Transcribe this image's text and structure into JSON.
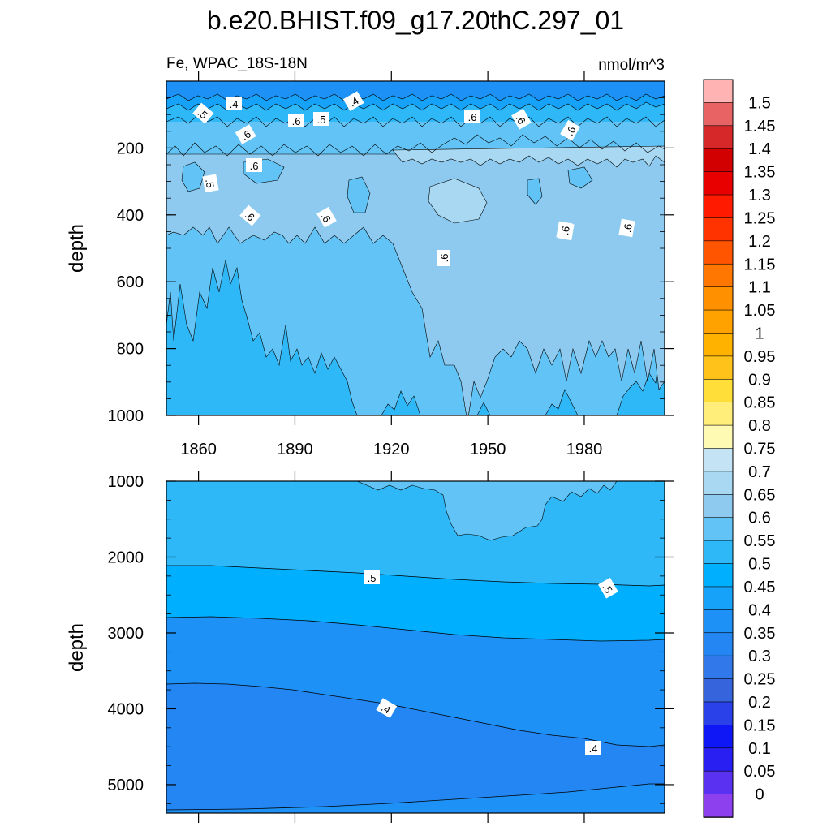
{
  "chart_data": {
    "type": "heatmap",
    "title": "b.e20.BHIST.f09_g17.20thC.297_01",
    "left_subtitle": "Fe, WPAC_18S-18N",
    "right_subtitle": "nmol/m^3",
    "colorbar": {
      "levels": [
        "1.5",
        "1.45",
        "1.4",
        "1.35",
        "1.3",
        "1.25",
        "1.2",
        "1.15",
        "1.1",
        "1.05",
        "1",
        "0.95",
        "0.9",
        "0.85",
        "0.8",
        "0.75",
        "0.7",
        "0.65",
        "0.6",
        "0.55",
        "0.5",
        "0.45",
        "0.4",
        "0.35",
        "0.3",
        "0.25",
        "0.2",
        "0.15",
        "0.1",
        "0.05",
        "0"
      ],
      "colors": [
        "#ffb3b3",
        "#e86464",
        "#d62828",
        "#d20000",
        "#e80000",
        "#ff1a00",
        "#ff3300",
        "#ff5500",
        "#ff7700",
        "#ff9100",
        "#ffa200",
        "#ffb300",
        "#ffc21a",
        "#ffde3a",
        "#ffee7a",
        "#fffab3",
        "#c4e4f6",
        "#a8d8f2",
        "#8ecaef",
        "#62c4f6",
        "#2eb8f8",
        "#00b0ff",
        "#17a2fa",
        "#1d91f6",
        "#2486f3",
        "#3178eb",
        "#3564dd",
        "#2a40e8",
        "#1017f7",
        "#2a1ff2",
        "#5b31f1",
        "#8d41ee"
      ]
    },
    "upper_panel": {
      "ylabel": "depth",
      "y_ticks": [
        "200",
        "400",
        "600",
        "800",
        "1000"
      ],
      "x_ticks": [
        "1860",
        "1890",
        "1920",
        "1950",
        "1980"
      ],
      "ylim": [
        0,
        1000
      ],
      "xlim": [
        1850,
        2005
      ],
      "contour_labels": [
        ".5",
        ".4",
        ".6",
        ".6",
        ".5",
        ".4",
        ".6",
        ".5",
        ".6",
        ".6",
        ".6",
        ".6",
        ".6",
        ".6",
        ".6",
        ".6",
        ".6"
      ]
    },
    "lower_panel": {
      "ylabel": "depth",
      "y_ticks": [
        "1000",
        "2000",
        "3000",
        "4000",
        "5000"
      ],
      "ylim": [
        1000,
        5375
      ],
      "xlim": [
        1850,
        2005
      ],
      "contour_labels": [
        ".5",
        ".5",
        ".4",
        ".4"
      ]
    }
  }
}
